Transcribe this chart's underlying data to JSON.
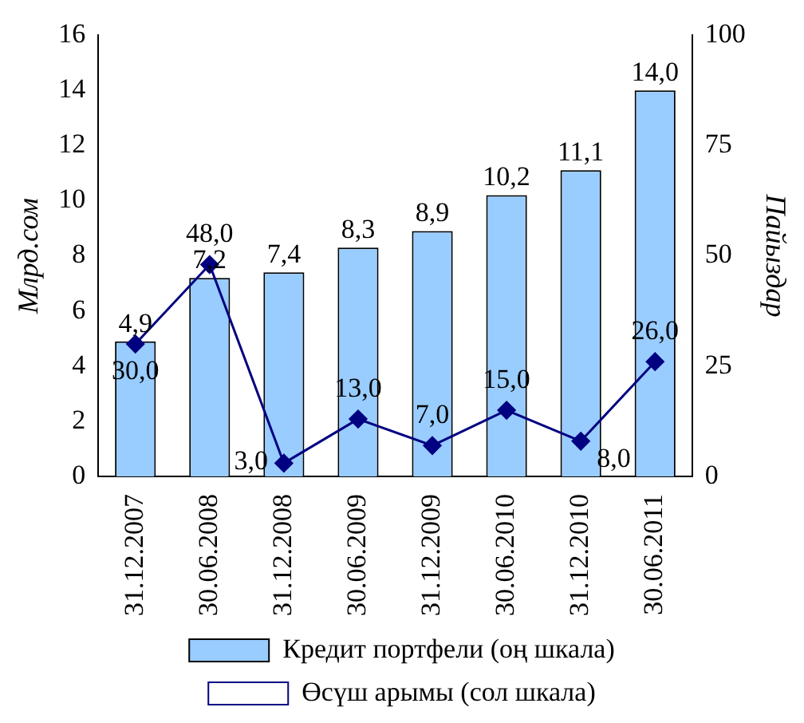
{
  "chart_data": {
    "type": "bar",
    "ylabel": "Млрд.сом",
    "y2label": "Пайыздар",
    "categories": [
      "31.12.2007",
      "30.06.2008",
      "31.12.2008",
      "30.06.2009",
      "31.12.2009",
      "30.06.2010",
      "31.12.2010",
      "30.06.2011"
    ],
    "series": [
      {
        "name": "Кредит портфели (оң шкала)",
        "color": "#99ccff",
        "values": [
          4.9,
          7.2,
          7.4,
          8.3,
          8.9,
          10.2,
          11.1,
          14.0
        ],
        "value_labels": [
          "4,9",
          "7,2",
          "7,4",
          "8,3",
          "8,9",
          "10,2",
          "11,1",
          "14,0"
        ]
      },
      {
        "name": "Өсүш арымы (сол шкала)",
        "type": "line",
        "axis": "y2",
        "color": "#000080",
        "values": [
          30,
          48,
          3,
          13,
          7,
          15,
          8,
          26
        ],
        "value_labels": [
          "30,0",
          "48,0",
          "3,0",
          "13,0",
          "7,0",
          "15,0",
          "8,0",
          "26,0"
        ]
      }
    ],
    "ylim": [
      0,
      16
    ],
    "yticks": [
      0,
      2,
      4,
      6,
      8,
      10,
      12,
      14,
      16
    ],
    "y2lim": [
      0,
      100
    ],
    "y2ticks": [
      0,
      25,
      50,
      75,
      100
    ],
    "marker": "diamond",
    "line_style": "solid",
    "grid": false,
    "legend": "bottom"
  }
}
